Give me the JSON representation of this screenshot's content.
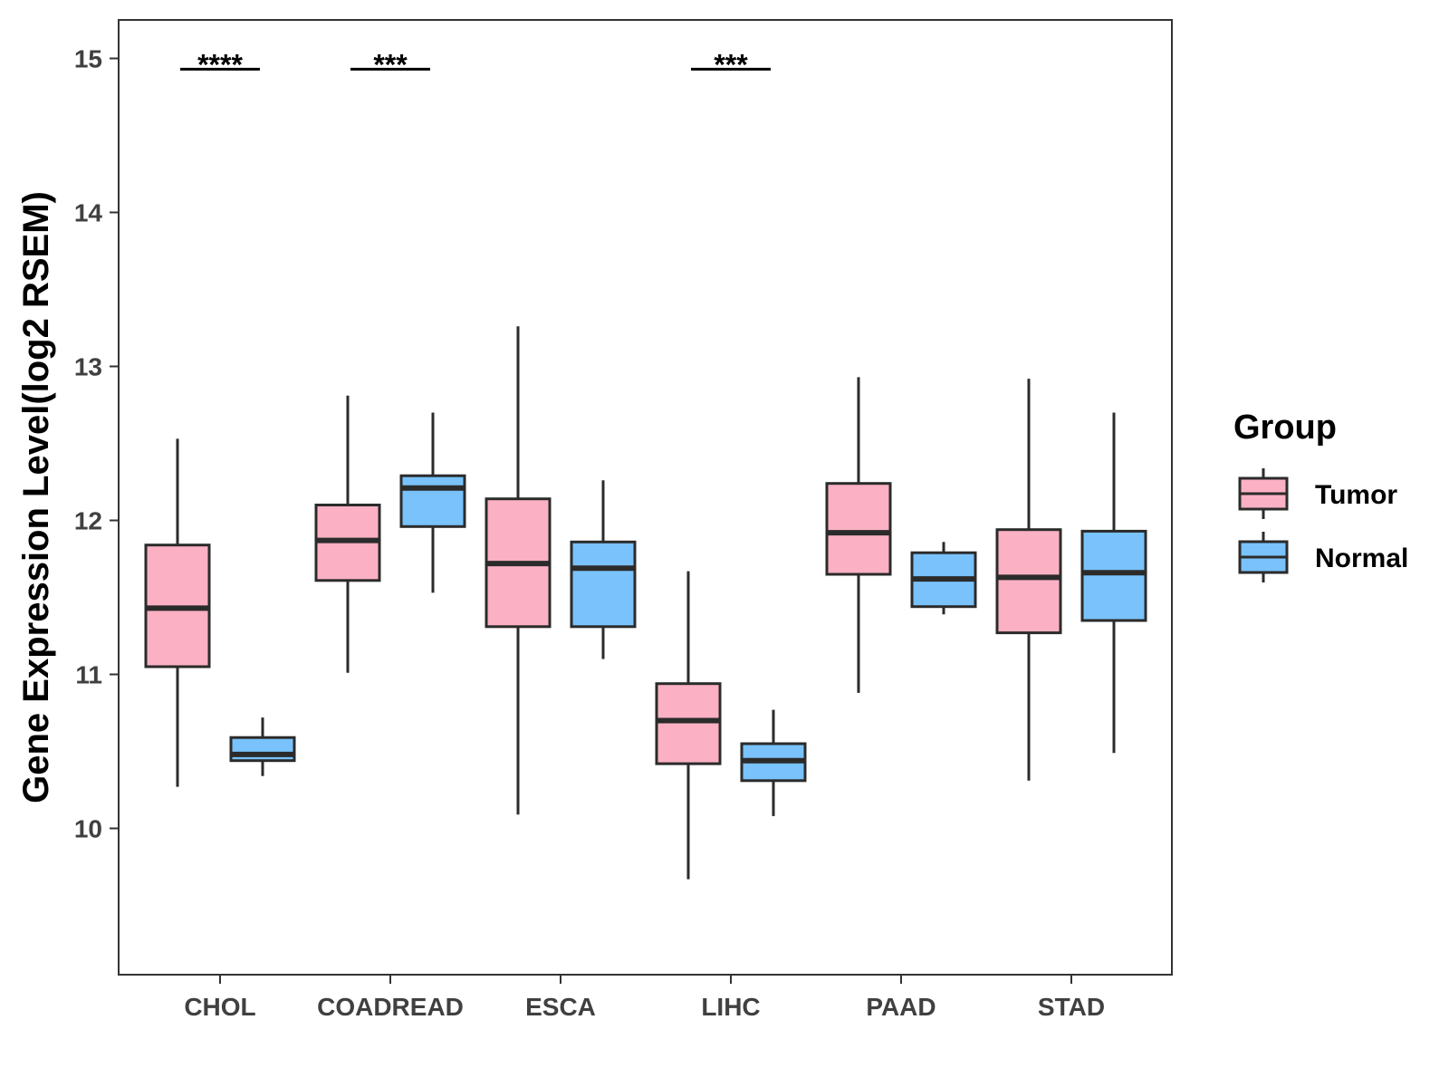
{
  "chart_data": {
    "type": "boxplot",
    "title": "",
    "xlabel": "",
    "ylabel": "Gene Expression Level(log2 RSEM)",
    "ylim": [
      9.05,
      15.25
    ],
    "yticks": [
      10,
      11,
      12,
      13,
      14,
      15
    ],
    "categories": [
      "CHOL",
      "COADREAD",
      "ESCA",
      "LIHC",
      "PAAD",
      "STAD"
    ],
    "legend": {
      "title": "Group",
      "position": "right"
    },
    "series": [
      {
        "name": "Tumor",
        "color": "#FBB1C3",
        "boxes": [
          {
            "min": 10.27,
            "q1": 11.05,
            "median": 11.43,
            "q3": 11.84,
            "max": 12.53
          },
          {
            "min": 11.01,
            "q1": 11.61,
            "median": 11.87,
            "q3": 12.1,
            "max": 12.81
          },
          {
            "min": 10.09,
            "q1": 11.31,
            "median": 11.72,
            "q3": 12.14,
            "max": 13.26
          },
          {
            "min": 9.67,
            "q1": 10.42,
            "median": 10.7,
            "q3": 10.94,
            "max": 11.67
          },
          {
            "min": 10.88,
            "q1": 11.65,
            "median": 11.92,
            "q3": 12.24,
            "max": 12.93
          },
          {
            "min": 10.31,
            "q1": 11.27,
            "median": 11.63,
            "q3": 11.94,
            "max": 12.92
          }
        ]
      },
      {
        "name": "Normal",
        "color": "#79C2FB",
        "boxes": [
          {
            "min": 10.34,
            "q1": 10.44,
            "median": 10.48,
            "q3": 10.59,
            "max": 10.72
          },
          {
            "min": 11.53,
            "q1": 11.96,
            "median": 12.21,
            "q3": 12.29,
            "max": 12.7
          },
          {
            "min": 11.1,
            "q1": 11.31,
            "median": 11.69,
            "q3": 11.86,
            "max": 12.26
          },
          {
            "min": 10.08,
            "q1": 10.31,
            "median": 10.44,
            "q3": 10.55,
            "max": 10.77
          },
          {
            "min": 11.39,
            "q1": 11.44,
            "median": 11.62,
            "q3": 11.79,
            "max": 11.86
          },
          {
            "min": 10.49,
            "q1": 11.35,
            "median": 11.66,
            "q3": 11.93,
            "max": 12.7
          }
        ]
      }
    ],
    "annotations": [
      {
        "category": "CHOL",
        "label": "****",
        "y": 14.93
      },
      {
        "category": "COADREAD",
        "label": "***",
        "y": 14.93
      },
      {
        "category": "LIHC",
        "label": "***",
        "y": 14.93
      }
    ]
  }
}
